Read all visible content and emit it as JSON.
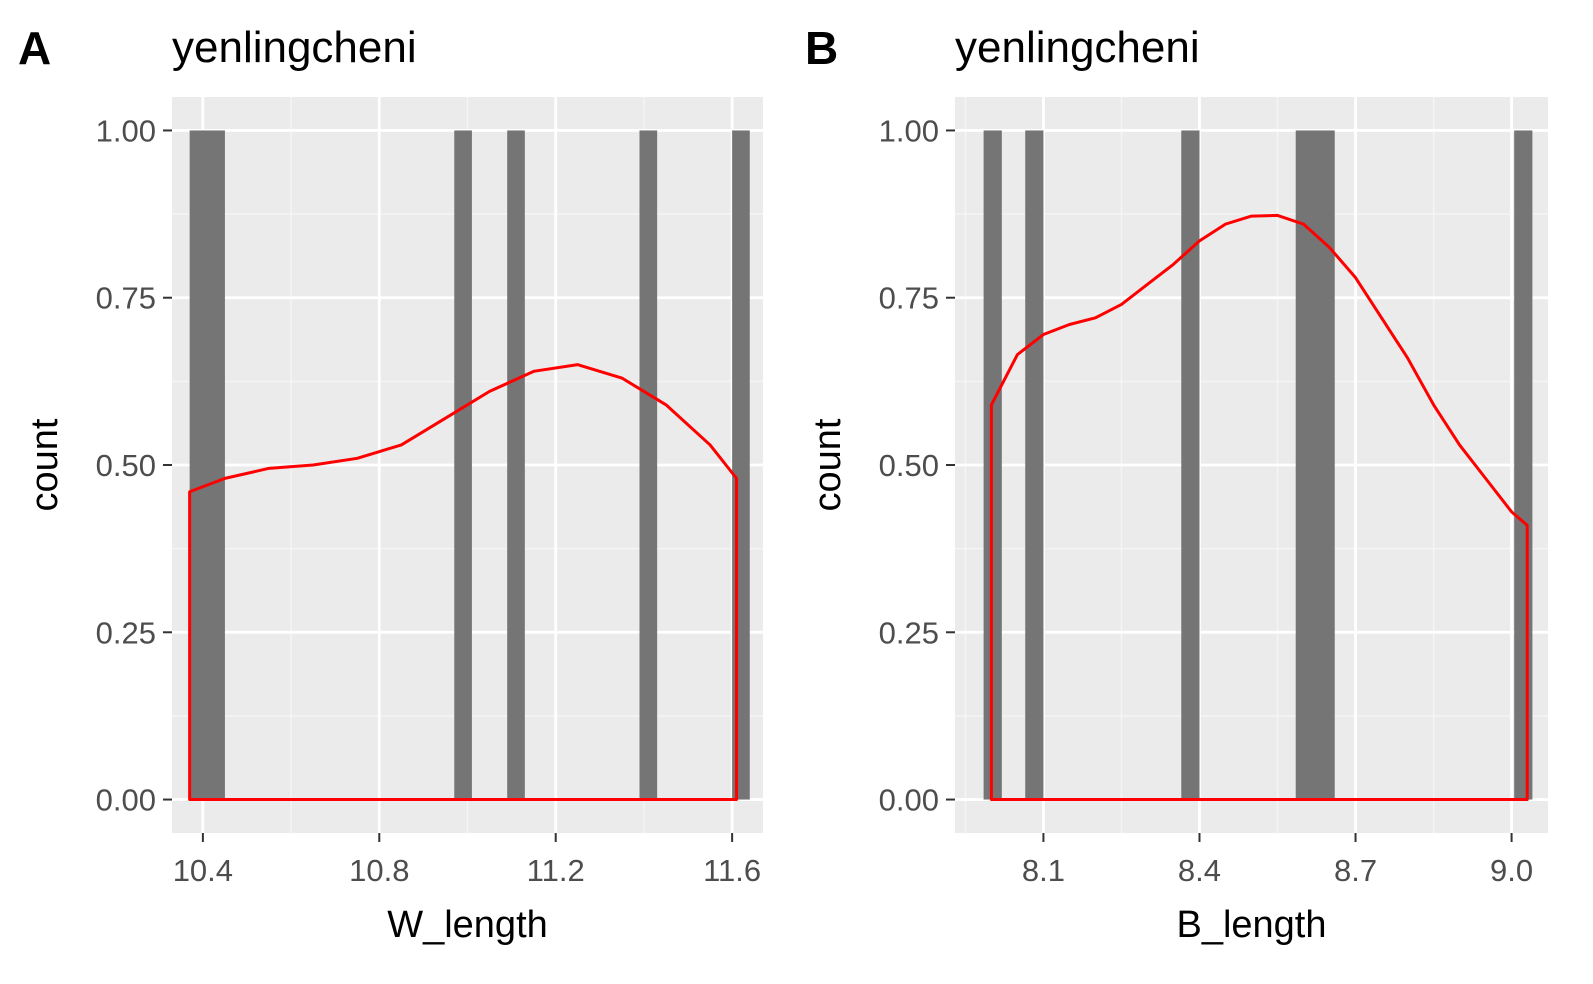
{
  "chart_data": [
    {
      "panel_tag": "A",
      "type": "histogram",
      "title": "yenlingcheni",
      "xlabel": "W_length",
      "ylabel": "count",
      "xlim": [
        10.33,
        11.67
      ],
      "ylim": [
        -0.05,
        1.05
      ],
      "x_ticks": [
        10.4,
        10.8,
        11.2,
        11.6
      ],
      "x_tick_labels": [
        "10.4",
        "10.8",
        "11.2",
        "11.6"
      ],
      "x_minor_ticks": [
        10.6,
        11.0,
        11.4
      ],
      "y_ticks": [
        0,
        0.25,
        0.5,
        0.75,
        1.0
      ],
      "y_tick_labels": [
        "0.00",
        "0.25",
        "0.50",
        "0.75",
        "1.00"
      ],
      "grid": true,
      "bar_color": "#757575",
      "bars": [
        {
          "x0": 10.37,
          "x1": 10.45,
          "count": 1
        },
        {
          "x0": 10.97,
          "x1": 11.01,
          "count": 1
        },
        {
          "x0": 11.09,
          "x1": 11.13,
          "count": 1
        },
        {
          "x0": 11.39,
          "x1": 11.43,
          "count": 1
        },
        {
          "x0": 11.6,
          "x1": 11.64,
          "count": 1
        }
      ],
      "density_color": "#ff0000",
      "density": {
        "x": [
          10.37,
          10.45,
          10.55,
          10.65,
          10.75,
          10.85,
          10.95,
          11.05,
          11.15,
          11.25,
          11.35,
          11.45,
          11.55,
          11.61
        ],
        "y": [
          0.46,
          0.48,
          0.495,
          0.5,
          0.51,
          0.53,
          0.57,
          0.61,
          0.64,
          0.65,
          0.63,
          0.59,
          0.53,
          0.48
        ]
      }
    },
    {
      "panel_tag": "B",
      "type": "histogram",
      "title": "yenlingcheni",
      "xlabel": "B_length",
      "ylabel": "count",
      "xlim": [
        7.93,
        9.07
      ],
      "ylim": [
        -0.05,
        1.05
      ],
      "x_ticks": [
        8.1,
        8.4,
        8.7,
        9.0
      ],
      "x_tick_labels": [
        "8.1",
        "8.4",
        "8.7",
        "9.0"
      ],
      "x_minor_ticks": [
        7.95,
        8.25,
        8.55,
        8.85
      ],
      "y_ticks": [
        0,
        0.25,
        0.5,
        0.75,
        1.0
      ],
      "y_tick_labels": [
        "0.00",
        "0.25",
        "0.50",
        "0.75",
        "1.00"
      ],
      "grid": true,
      "bar_color": "#757575",
      "bars": [
        {
          "x0": 7.985,
          "x1": 8.02,
          "count": 1
        },
        {
          "x0": 8.065,
          "x1": 8.1,
          "count": 1
        },
        {
          "x0": 8.365,
          "x1": 8.4,
          "count": 1
        },
        {
          "x0": 8.585,
          "x1": 8.66,
          "count": 1
        },
        {
          "x0": 9.005,
          "x1": 9.04,
          "count": 1
        }
      ],
      "density_color": "#ff0000",
      "density": {
        "x": [
          8.0,
          8.05,
          8.1,
          8.15,
          8.2,
          8.25,
          8.3,
          8.35,
          8.4,
          8.45,
          8.5,
          8.55,
          8.6,
          8.65,
          8.7,
          8.75,
          8.8,
          8.85,
          8.9,
          8.95,
          9.0,
          9.03
        ],
        "y": [
          0.59,
          0.665,
          0.695,
          0.71,
          0.72,
          0.74,
          0.77,
          0.8,
          0.835,
          0.86,
          0.872,
          0.873,
          0.86,
          0.825,
          0.78,
          0.72,
          0.66,
          0.59,
          0.53,
          0.48,
          0.43,
          0.41
        ]
      }
    }
  ]
}
